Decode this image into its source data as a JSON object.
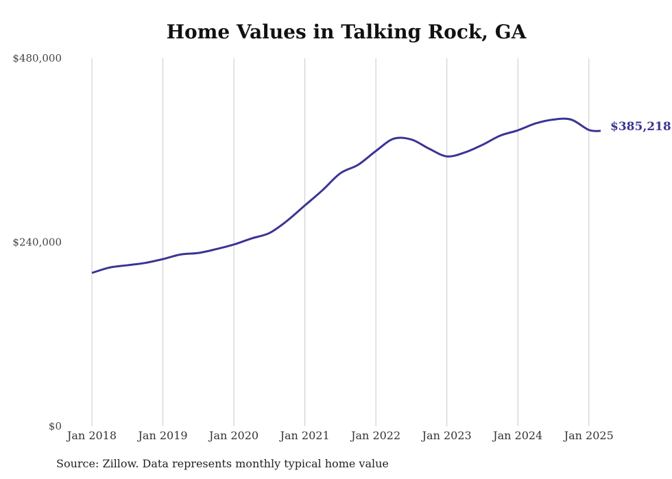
{
  "chart_data": {
    "type": "line",
    "title": "Home Values in Talking Rock, GA",
    "xlabel": "",
    "ylabel": "",
    "ylim": [
      0,
      480000
    ],
    "yticks": [
      0,
      240000,
      480000
    ],
    "ytick_labels": [
      "$0",
      "$240,000",
      "$480,000"
    ],
    "xlim": [
      "2018-01",
      "2025-03"
    ],
    "xticks": [
      "2018-01",
      "2019-01",
      "2020-01",
      "2021-01",
      "2022-01",
      "2023-01",
      "2024-01",
      "2025-01"
    ],
    "xtick_labels": [
      "Jan 2018",
      "Jan 2019",
      "Jan 2020",
      "Jan 2021",
      "Jan 2022",
      "Jan 2023",
      "Jan 2024",
      "Jan 2025"
    ],
    "grid": "vertical",
    "color": "#3b3493",
    "end_label": "$385,218",
    "series": [
      {
        "x": [
          "2018-01",
          "2018-04",
          "2018-07",
          "2018-10",
          "2019-01",
          "2019-04",
          "2019-07",
          "2019-10",
          "2020-01",
          "2020-04",
          "2020-07",
          "2020-10",
          "2021-01",
          "2021-04",
          "2021-07",
          "2021-10",
          "2022-01",
          "2022-04",
          "2022-07",
          "2022-10",
          "2023-01",
          "2023-04",
          "2023-07",
          "2023-10",
          "2024-01",
          "2024-04",
          "2024-07",
          "2024-10",
          "2025-01",
          "2025-03"
        ],
        "y": [
          200000,
          207000,
          210000,
          213000,
          218000,
          224000,
          226000,
          231000,
          237000,
          245000,
          252000,
          268000,
          288000,
          308000,
          330000,
          341000,
          359000,
          375000,
          374000,
          362000,
          352000,
          357000,
          367000,
          379000,
          386000,
          395000,
          400000,
          400000,
          386500,
          385218
        ]
      }
    ]
  },
  "source_note": "Source: Zillow. Data represents monthly typical home value"
}
